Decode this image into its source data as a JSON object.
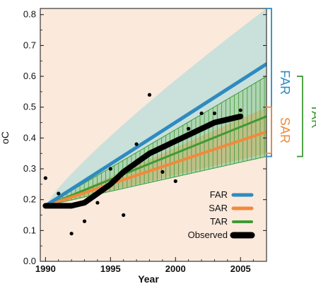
{
  "chart_data": {
    "type": "line",
    "title": "",
    "xlabel": "Year",
    "ylabel": "oC",
    "xlim": [
      1989.6,
      2007.0
    ],
    "ylim": [
      0.0,
      0.82
    ],
    "x_ticks": [
      1990,
      1995,
      2000,
      2005
    ],
    "y_ticks": [
      0.0,
      0.1,
      0.2,
      0.3,
      0.4,
      0.5,
      0.6,
      0.7,
      0.8
    ],
    "x_tick_labels": [
      "1990",
      "1995",
      "2000",
      "2005"
    ],
    "y_tick_labels": [
      "0.0",
      "0.1",
      "0.2",
      "0.3",
      "0.4",
      "0.5",
      "0.6",
      "0.7",
      "0.8"
    ],
    "legend_position": "bottom-right",
    "series": [
      {
        "name": "FAR",
        "color": "#2e8bbf",
        "x": [
          1990,
          2007
        ],
        "values": [
          0.18,
          0.64
        ],
        "range_lower": [
          0.18,
          0.34
        ],
        "range_upper": [
          0.18,
          0.82
        ]
      },
      {
        "name": "SAR",
        "color": "#f08a3c",
        "x": [
          1990,
          2007
        ],
        "values": [
          0.18,
          0.42
        ],
        "range_lower": [
          0.18,
          0.35
        ],
        "range_upper": [
          0.18,
          0.5
        ]
      },
      {
        "name": "TAR",
        "color": "#3f9a35",
        "x": [
          1990,
          2007
        ],
        "values": [
          0.18,
          0.47
        ],
        "range_lower": [
          0.18,
          0.34
        ],
        "range_upper": [
          0.18,
          0.6
        ]
      },
      {
        "name": "Observed",
        "color": "#000000",
        "x": [
          1990,
          1991,
          1992,
          1993,
          1994,
          1995,
          1996,
          1997,
          1998,
          1999,
          2000,
          2001,
          2002,
          2003,
          2004,
          2005
        ],
        "values": [
          0.18,
          0.18,
          0.18,
          0.19,
          0.22,
          0.25,
          0.29,
          0.32,
          0.35,
          0.37,
          0.39,
          0.41,
          0.43,
          0.45,
          0.46,
          0.47
        ]
      }
    ],
    "annual_points": {
      "x": [
        1990,
        1991,
        1992,
        1993,
        1994,
        1995,
        1996,
        1997,
        1998,
        1999,
        2000,
        2001,
        2002,
        2003,
        2005
      ],
      "values": [
        0.27,
        0.22,
        0.09,
        0.13,
        0.19,
        0.3,
        0.15,
        0.38,
        0.54,
        0.29,
        0.26,
        0.43,
        0.48,
        0.48,
        0.49
      ]
    },
    "bracket_labels": [
      "FAR",
      "SAR",
      "TAR"
    ]
  }
}
